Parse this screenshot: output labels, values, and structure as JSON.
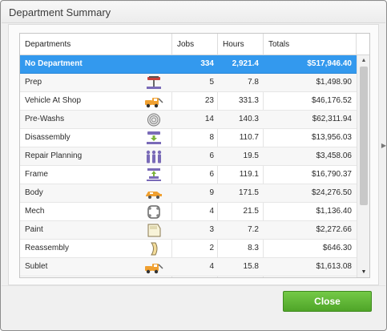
{
  "window": {
    "title": "Department Summary"
  },
  "table": {
    "columns": [
      "Departments",
      "Jobs",
      "Hours",
      "Totals"
    ],
    "rows": [
      {
        "name": "No Department",
        "icon": "",
        "jobs": "334",
        "hours": "2,921.4",
        "total": "$517,946.40"
      },
      {
        "name": "Prep",
        "icon": "car-lift-icon",
        "jobs": "5",
        "hours": "7.8",
        "total": "$1,498.90"
      },
      {
        "name": "Vehicle At Shop",
        "icon": "tow-truck-icon",
        "jobs": "23",
        "hours": "331.3",
        "total": "$46,176.52"
      },
      {
        "name": "Pre-Washs",
        "icon": "wash-brush-icon",
        "jobs": "14",
        "hours": "140.3",
        "total": "$62,311.94"
      },
      {
        "name": "Disassembly",
        "icon": "car-lift-down-icon",
        "jobs": "8",
        "hours": "110.7",
        "total": "$13,956.03"
      },
      {
        "name": "Repair Planning",
        "icon": "team-people-icon",
        "jobs": "6",
        "hours": "19.5",
        "total": "$3,458.06"
      },
      {
        "name": "Frame",
        "icon": "frame-lift-icon",
        "jobs": "6",
        "hours": "119.1",
        "total": "$16,790.37"
      },
      {
        "name": "Body",
        "icon": "car-body-icon",
        "jobs": "9",
        "hours": "171.5",
        "total": "$24,276.50"
      },
      {
        "name": "Mech",
        "icon": "chassis-icon",
        "jobs": "4",
        "hours": "21.5",
        "total": "$1,136.40"
      },
      {
        "name": "Paint",
        "icon": "car-door-icon",
        "jobs": "3",
        "hours": "7.2",
        "total": "$2,272.66"
      },
      {
        "name": "Reassembly",
        "icon": "car-panel-icon",
        "jobs": "2",
        "hours": "8.3",
        "total": "$646.30"
      },
      {
        "name": "Sublet",
        "icon": "tow-truck-icon",
        "jobs": "4",
        "hours": "15.8",
        "total": "$1,613.08"
      }
    ],
    "selected_index": 0
  },
  "buttons": {
    "close": "Close"
  },
  "colors": {
    "selection": "#3399ee",
    "close_button": "#5cb032",
    "icon_orange": "#f0a030",
    "icon_purple": "#7a6bb8"
  }
}
